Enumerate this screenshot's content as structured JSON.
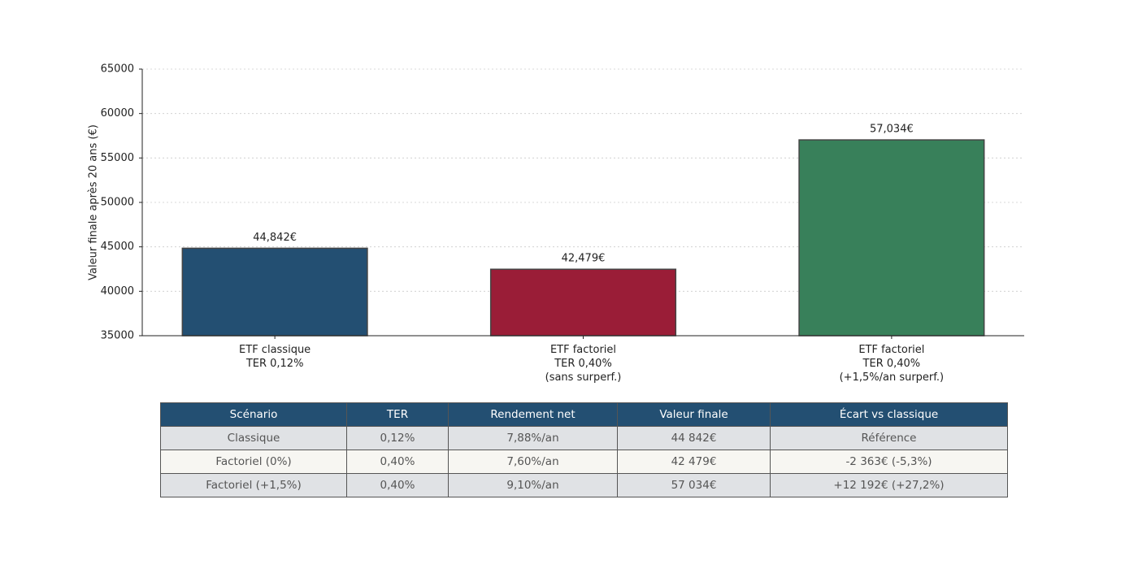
{
  "chart_data": {
    "type": "bar",
    "ylabel": "Valeur finale après 20 ans (€)",
    "categories": [
      "ETF classique\nTER 0,12%",
      "ETF factoriel\nTER 0,40%\n(sans surperf.)",
      "ETF factoriel\nTER 0,40%\n(+1,5%/an surperf.)"
    ],
    "values": [
      44842,
      42479,
      57034
    ],
    "value_labels": [
      "44,842€",
      "42,479€",
      "57,034€"
    ],
    "colors": [
      "#234f72",
      "#9a1d37",
      "#38805a"
    ],
    "ylim": [
      35000,
      65000
    ],
    "yticks": [
      35000,
      40000,
      45000,
      50000,
      55000,
      60000,
      65000
    ],
    "grid": true
  },
  "table": {
    "columns": [
      "Scénario",
      "TER",
      "Rendement net",
      "Valeur finale",
      "Écart vs classique"
    ],
    "rows": [
      [
        "Classique",
        "0,12%",
        "7,88%/an",
        "44 842€",
        "Référence"
      ],
      [
        "Factoriel (0%)",
        "0,40%",
        "7,60%/an",
        "42 479€",
        "-2 363€ (-5,3%)"
      ],
      [
        "Factoriel (+1,5%)",
        "0,40%",
        "9,10%/an",
        "57 034€",
        "+12 192€ (+27,2%)"
      ]
    ]
  }
}
